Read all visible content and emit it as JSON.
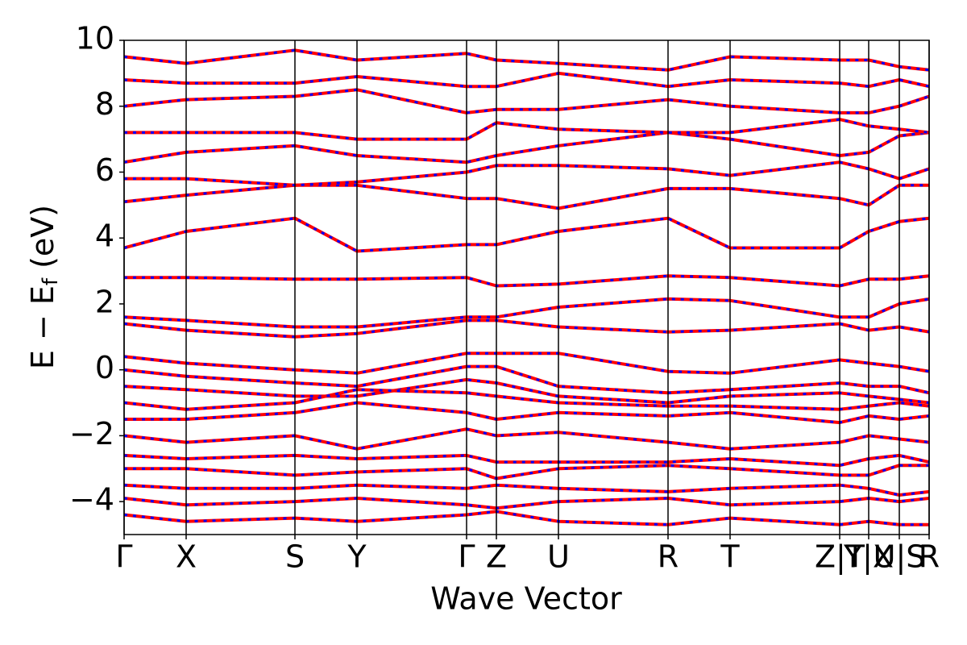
{
  "chart_data": {
    "type": "line",
    "xlabel": "Wave Vector",
    "ylabel": {
      "text": "E − E",
      "sub": "f",
      "unit": "(eV)"
    },
    "xlim": [
      0,
      9.99
    ],
    "ylim": [
      -5,
      10
    ],
    "xticks": [
      {
        "value": 0,
        "label": "Γ"
      },
      {
        "value": 0.77,
        "label": "X"
      },
      {
        "value": 2.12,
        "label": "S"
      },
      {
        "value": 2.89,
        "label": "Y"
      },
      {
        "value": 4.25,
        "label": "Γ"
      },
      {
        "value": 4.62,
        "label": "Z"
      },
      {
        "value": 5.39,
        "label": "U"
      },
      {
        "value": 6.75,
        "label": "R"
      },
      {
        "value": 7.52,
        "label": "T"
      },
      {
        "value": 8.88,
        "label": "Z|T"
      },
      {
        "value": 9.24,
        "label": "Y|X"
      },
      {
        "value": 9.62,
        "label": "U|S"
      },
      {
        "value": 9.99,
        "label": "R"
      }
    ],
    "yticks": [
      {
        "value": -4,
        "label": "−4"
      },
      {
        "value": -2,
        "label": "−2"
      },
      0,
      2,
      4,
      6,
      8,
      10
    ],
    "x": [
      0,
      0.77,
      2.12,
      2.89,
      4.25,
      4.62,
      5.39,
      6.75,
      7.52,
      8.88,
      9.24,
      9.62,
      9.99
    ],
    "overlay_color": "#0000ff",
    "series": [
      {
        "color": "#ff0000",
        "values": [
          3.7,
          4.2,
          4.6,
          3.6,
          3.8,
          3.8,
          4.2,
          4.6,
          3.7,
          3.7,
          4.2,
          4.5,
          4.6
        ]
      },
      {
        "color": "#ff0000",
        "values": [
          2.8,
          2.8,
          2.75,
          2.75,
          2.8,
          2.55,
          2.6,
          2.85,
          2.8,
          2.55,
          2.75,
          2.75,
          2.85
        ]
      },
      {
        "color": "#ff0000",
        "values": [
          1.6,
          1.5,
          1.3,
          1.3,
          1.6,
          1.6,
          1.9,
          2.15,
          2.1,
          1.6,
          1.6,
          2.0,
          2.15
        ]
      },
      {
        "color": "#ff0000",
        "values": [
          1.4,
          1.2,
          1.0,
          1.1,
          1.5,
          1.5,
          1.3,
          1.15,
          1.2,
          1.4,
          1.2,
          1.3,
          1.15
        ]
      },
      {
        "color": "#ff0000",
        "values": [
          5.1,
          5.3,
          5.6,
          5.6,
          5.2,
          5.2,
          4.9,
          5.5,
          5.5,
          5.2,
          5.0,
          5.6,
          5.6
        ]
      },
      {
        "color": "#ff0000",
        "values": [
          5.8,
          5.8,
          5.6,
          5.7,
          6.0,
          6.2,
          6.2,
          6.1,
          5.9,
          6.3,
          6.1,
          5.8,
          6.1
        ]
      },
      {
        "color": "#ff0000",
        "values": [
          6.3,
          6.6,
          6.8,
          6.5,
          6.3,
          6.5,
          6.8,
          7.2,
          7.0,
          6.5,
          6.6,
          7.1,
          7.2
        ]
      },
      {
        "color": "#ff0000",
        "values": [
          7.2,
          7.2,
          7.2,
          7.0,
          7.0,
          7.5,
          7.3,
          7.2,
          7.2,
          7.6,
          7.4,
          7.3,
          7.2
        ]
      },
      {
        "color": "#ff0000",
        "values": [
          8.0,
          8.2,
          8.3,
          8.5,
          7.8,
          7.9,
          7.9,
          8.2,
          8.0,
          7.8,
          7.8,
          8.0,
          8.3
        ]
      },
      {
        "color": "#ff0000",
        "values": [
          8.8,
          8.7,
          8.7,
          8.9,
          8.6,
          8.6,
          9.0,
          8.6,
          8.8,
          8.7,
          8.6,
          8.8,
          8.6
        ]
      },
      {
        "color": "#ff0000",
        "values": [
          9.5,
          9.3,
          9.7,
          9.4,
          9.6,
          9.4,
          9.3,
          9.1,
          9.5,
          9.4,
          9.4,
          9.2,
          9.1
        ]
      },
      {
        "color": "#ff0000",
        "values": [
          0.4,
          0.2,
          0.0,
          -0.1,
          0.5,
          0.5,
          0.5,
          -0.05,
          -0.1,
          0.3,
          0.2,
          0.1,
          -0.05
        ]
      },
      {
        "color": "#ff0000",
        "values": [
          0.0,
          -0.2,
          -0.4,
          -0.5,
          0.1,
          0.1,
          -0.5,
          -0.7,
          -0.6,
          -0.4,
          -0.5,
          -0.5,
          -0.7
        ]
      },
      {
        "color": "#ff0000",
        "values": [
          -0.5,
          -0.6,
          -0.8,
          -0.8,
          -0.3,
          -0.4,
          -0.8,
          -1.0,
          -0.8,
          -0.7,
          -0.8,
          -0.9,
          -1.0
        ]
      },
      {
        "color": "#ff0000",
        "values": [
          -1.0,
          -1.2,
          -1.0,
          -0.6,
          -0.7,
          -0.8,
          -1.0,
          -1.1,
          -1.1,
          -1.2,
          -1.1,
          -1.0,
          -1.1
        ]
      },
      {
        "color": "#ff0000",
        "values": [
          -1.5,
          -1.5,
          -1.3,
          -1.0,
          -1.3,
          -1.5,
          -1.3,
          -1.4,
          -1.3,
          -1.6,
          -1.4,
          -1.5,
          -1.4
        ]
      },
      {
        "color": "#ff0000",
        "values": [
          -2.0,
          -2.2,
          -2.0,
          -2.4,
          -1.8,
          -2.0,
          -1.9,
          -2.2,
          -2.4,
          -2.2,
          -2.0,
          -2.1,
          -2.2
        ]
      },
      {
        "color": "#ff0000",
        "values": [
          -2.6,
          -2.7,
          -2.6,
          -2.7,
          -2.6,
          -2.8,
          -2.8,
          -2.8,
          -2.7,
          -2.9,
          -2.7,
          -2.6,
          -2.8
        ]
      },
      {
        "color": "#ff0000",
        "values": [
          -3.0,
          -3.0,
          -3.2,
          -3.1,
          -3.0,
          -3.3,
          -3.0,
          -2.9,
          -3.0,
          -3.2,
          -3.2,
          -2.9,
          -2.9
        ]
      },
      {
        "color": "#ff0000",
        "values": [
          -3.5,
          -3.6,
          -3.6,
          -3.5,
          -3.6,
          -3.5,
          -3.6,
          -3.7,
          -3.6,
          -3.5,
          -3.6,
          -3.8,
          -3.7
        ]
      },
      {
        "color": "#ff0000",
        "values": [
          -3.9,
          -4.1,
          -4.0,
          -3.9,
          -4.1,
          -4.2,
          -4.0,
          -3.9,
          -4.1,
          -4.0,
          -3.9,
          -4.0,
          -3.9
        ]
      },
      {
        "color": "#ff0000",
        "values": [
          -4.4,
          -4.6,
          -4.5,
          -4.6,
          -4.4,
          -4.3,
          -4.6,
          -4.7,
          -4.5,
          -4.7,
          -4.6,
          -4.7,
          -4.7
        ]
      }
    ]
  }
}
